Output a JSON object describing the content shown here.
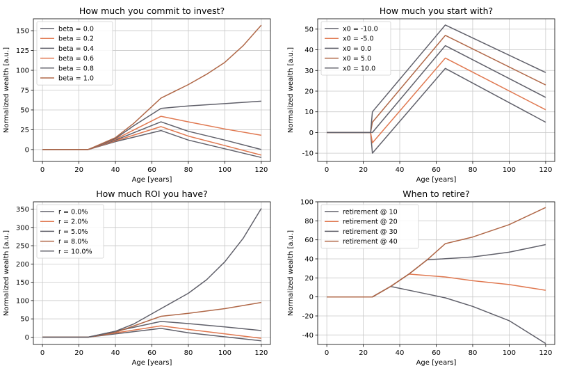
{
  "chart_data": [
    {
      "type": "line",
      "title": "How much you commit to invest?",
      "xlabel": "Age [years]",
      "ylabel": "Normalized wealth [a.u.]",
      "xlim": [
        -5,
        125
      ],
      "ylim": [
        -15,
        165
      ],
      "xticks": [
        0,
        20,
        40,
        60,
        80,
        100,
        120
      ],
      "yticks": [
        0,
        25,
        50,
        75,
        100,
        125,
        150
      ],
      "grid": true,
      "legend_position": "top-left",
      "series": [
        {
          "name": "beta = 0.0",
          "color": "#60606a",
          "points": [
            [
              0,
              0
            ],
            [
              25,
              0
            ],
            [
              40,
              10
            ],
            [
              65,
              24
            ],
            [
              80,
              12
            ],
            [
              100,
              1
            ],
            [
              120,
              -10
            ]
          ]
        },
        {
          "name": "beta = 0.2",
          "color": "#e07850",
          "points": [
            [
              0,
              0
            ],
            [
              25,
              0
            ],
            [
              40,
              11
            ],
            [
              65,
              29
            ],
            [
              80,
              17
            ],
            [
              100,
              5
            ],
            [
              120,
              -7
            ]
          ]
        },
        {
          "name": "beta = 0.4",
          "color": "#60606a",
          "points": [
            [
              0,
              0
            ],
            [
              25,
              0
            ],
            [
              40,
              12
            ],
            [
              65,
              35
            ],
            [
              80,
              23
            ],
            [
              100,
              12
            ],
            [
              120,
              0
            ]
          ]
        },
        {
          "name": "beta = 0.6",
          "color": "#e07850",
          "points": [
            [
              0,
              0
            ],
            [
              25,
              0
            ],
            [
              40,
              13
            ],
            [
              65,
              42
            ],
            [
              80,
              35
            ],
            [
              100,
              26
            ],
            [
              120,
              18
            ]
          ]
        },
        {
          "name": "beta = 0.8",
          "color": "#60606a",
          "points": [
            [
              0,
              0
            ],
            [
              25,
              0
            ],
            [
              40,
              14
            ],
            [
              50,
              30
            ],
            [
              65,
              52
            ],
            [
              80,
              55
            ],
            [
              100,
              58
            ],
            [
              120,
              61
            ]
          ]
        },
        {
          "name": "beta = 1.0",
          "color": "#b06848",
          "points": [
            [
              0,
              0
            ],
            [
              25,
              0
            ],
            [
              40,
              15
            ],
            [
              50,
              33
            ],
            [
              65,
              65
            ],
            [
              80,
              82
            ],
            [
              90,
              95
            ],
            [
              100,
              110
            ],
            [
              110,
              131
            ],
            [
              120,
              157
            ]
          ]
        }
      ]
    },
    {
      "type": "line",
      "title": "How much you start with?",
      "xlabel": "Age [years]",
      "ylabel": "Normalized wealth [a.u.]",
      "xlim": [
        -5,
        125
      ],
      "ylim": [
        -14,
        55
      ],
      "xticks": [
        0,
        20,
        40,
        60,
        80,
        100,
        120
      ],
      "yticks": [
        -10,
        0,
        10,
        20,
        30,
        40,
        50
      ],
      "grid": true,
      "legend_position": "top-left",
      "series": [
        {
          "name": "x0 = -10.0",
          "color": "#60606a",
          "points": [
            [
              0,
              0
            ],
            [
              24,
              0
            ],
            [
              25,
              -10
            ],
            [
              65,
              31
            ],
            [
              120,
              5
            ]
          ]
        },
        {
          "name": "x0 = -5.0",
          "color": "#e07850",
          "points": [
            [
              0,
              0
            ],
            [
              24,
              0
            ],
            [
              25,
              -5
            ],
            [
              65,
              36
            ],
            [
              120,
              11
            ]
          ]
        },
        {
          "name": "x0 = 0.0",
          "color": "#60606a",
          "points": [
            [
              0,
              0
            ],
            [
              25,
              0
            ],
            [
              65,
              42
            ],
            [
              120,
              17
            ]
          ]
        },
        {
          "name": "x0 = 5.0",
          "color": "#b06848",
          "points": [
            [
              0,
              0
            ],
            [
              24,
              0
            ],
            [
              25,
              5
            ],
            [
              65,
              47
            ],
            [
              120,
              23
            ]
          ]
        },
        {
          "name": "x0 = 10.0",
          "color": "#60606a",
          "points": [
            [
              0,
              0
            ],
            [
              24,
              0
            ],
            [
              25,
              10
            ],
            [
              65,
              52
            ],
            [
              120,
              29
            ]
          ]
        }
      ]
    },
    {
      "type": "line",
      "title": "How much ROI you have?",
      "xlabel": "Age [years]",
      "ylabel": "Normalized wealth [a.u.]",
      "xlim": [
        -5,
        125
      ],
      "ylim": [
        -20,
        370
      ],
      "xticks": [
        0,
        20,
        40,
        60,
        80,
        100,
        120
      ],
      "yticks": [
        0,
        50,
        100,
        150,
        200,
        250,
        300,
        350
      ],
      "grid": true,
      "legend_position": "top-left",
      "series": [
        {
          "name": "r = 0.0%",
          "color": "#60606a",
          "points": [
            [
              0,
              0
            ],
            [
              25,
              0
            ],
            [
              65,
              24
            ],
            [
              80,
              12
            ],
            [
              100,
              1
            ],
            [
              120,
              -10
            ]
          ]
        },
        {
          "name": "r = 2.0%",
          "color": "#e07850",
          "points": [
            [
              0,
              0
            ],
            [
              25,
              0
            ],
            [
              65,
              31
            ],
            [
              80,
              21
            ],
            [
              100,
              9
            ],
            [
              120,
              -3
            ]
          ]
        },
        {
          "name": "r = 5.0%",
          "color": "#60606a",
          "points": [
            [
              0,
              0
            ],
            [
              25,
              0
            ],
            [
              65,
              43
            ],
            [
              80,
              37
            ],
            [
              100,
              28
            ],
            [
              120,
              18
            ]
          ]
        },
        {
          "name": "r = 8.0%",
          "color": "#b06848",
          "points": [
            [
              0,
              0
            ],
            [
              25,
              0
            ],
            [
              40,
              13
            ],
            [
              65,
              57
            ],
            [
              80,
              65
            ],
            [
              100,
              78
            ],
            [
              120,
              95
            ]
          ]
        },
        {
          "name": "r = 10.0%",
          "color": "#60606a",
          "points": [
            [
              0,
              0
            ],
            [
              25,
              0
            ],
            [
              40,
              16
            ],
            [
              50,
              36
            ],
            [
              65,
              78
            ],
            [
              80,
              120
            ],
            [
              90,
              157
            ],
            [
              100,
              206
            ],
            [
              110,
              270
            ],
            [
              120,
              352
            ]
          ]
        }
      ]
    },
    {
      "type": "line",
      "title": "When to retire?",
      "xlabel": "Age [years]",
      "ylabel": "Normalized wealth [a.u.]",
      "xlim": [
        -5,
        125
      ],
      "ylim": [
        -50,
        100
      ],
      "xticks": [
        0,
        20,
        40,
        60,
        80,
        100,
        120
      ],
      "yticks": [
        -40,
        -20,
        0,
        20,
        40,
        60,
        80,
        100
      ],
      "grid": true,
      "legend_position": "top-left",
      "series": [
        {
          "name": "retirement @ 10",
          "color": "#60606a",
          "points": [
            [
              0,
              0
            ],
            [
              25,
              0
            ],
            [
              35,
              11
            ],
            [
              50,
              5
            ],
            [
              65,
              -1
            ],
            [
              80,
              -10
            ],
            [
              100,
              -25
            ],
            [
              120,
              -49
            ]
          ]
        },
        {
          "name": "retirement @ 20",
          "color": "#e07850",
          "points": [
            [
              0,
              0
            ],
            [
              25,
              0
            ],
            [
              35,
              11
            ],
            [
              45,
              24
            ],
            [
              65,
              21
            ],
            [
              80,
              17
            ],
            [
              100,
              13
            ],
            [
              120,
              7
            ]
          ]
        },
        {
          "name": "retirement @ 30",
          "color": "#60606a",
          "points": [
            [
              0,
              0
            ],
            [
              25,
              0
            ],
            [
              35,
              11
            ],
            [
              45,
              24
            ],
            [
              55,
              39
            ],
            [
              80,
              42
            ],
            [
              100,
              47
            ],
            [
              120,
              55
            ]
          ]
        },
        {
          "name": "retirement @ 40",
          "color": "#b06848",
          "points": [
            [
              0,
              0
            ],
            [
              25,
              0
            ],
            [
              35,
              11
            ],
            [
              45,
              24
            ],
            [
              55,
              39
            ],
            [
              65,
              56
            ],
            [
              80,
              63
            ],
            [
              100,
              76
            ],
            [
              120,
              94
            ]
          ]
        }
      ]
    }
  ]
}
